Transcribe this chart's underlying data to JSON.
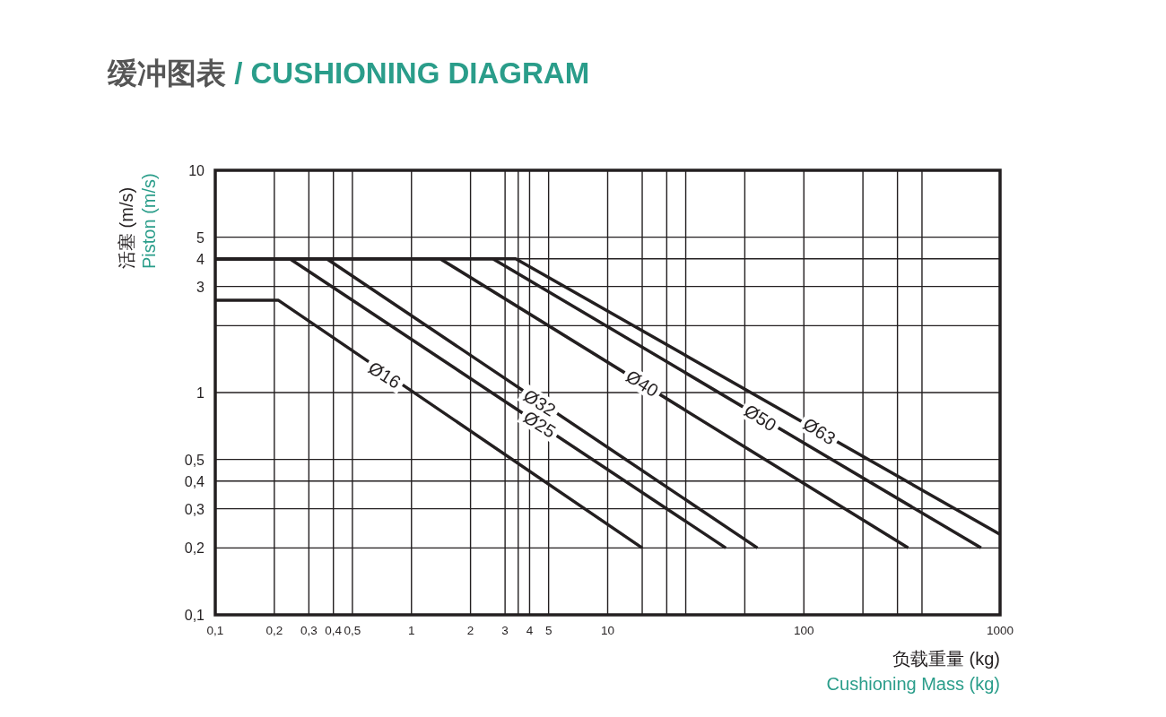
{
  "chart_data": {
    "type": "line",
    "title": "缓冲图表 / CUSHIONING DIAGRAM",
    "xlabel": "负载重量 (kg)\nCushioning Mass (kg)",
    "ylabel": "活塞 (m/s)\nPiston (m/s)",
    "log": "xy",
    "grid": true,
    "xlim": [
      0.1,
      1000
    ],
    "ylim": [
      0.1,
      10
    ],
    "xticks": [
      {
        "value": 0.1,
        "label": "0,1"
      },
      {
        "value": 0.2,
        "label": "0,2"
      },
      {
        "value": 0.3,
        "label": "0,3"
      },
      {
        "value": 0.4,
        "label": "0,4"
      },
      {
        "value": 0.5,
        "label": "0,5"
      },
      1,
      2,
      3,
      {
        "value": 3.5,
        "label": null
      },
      4,
      5,
      10,
      {
        "value": 15,
        "label": null
      },
      {
        "value": 20,
        "label": null
      },
      {
        "value": 25,
        "label": null
      },
      {
        "value": 50,
        "label": null
      },
      100,
      {
        "value": 200,
        "label": null
      },
      {
        "value": 300,
        "label": null
      },
      {
        "value": 400,
        "label": null
      },
      1000
    ],
    "yticks": [
      {
        "value": 0.1,
        "label": "0,1"
      },
      {
        "value": 0.2,
        "label": "0,2"
      },
      {
        "value": 0.3,
        "label": "0,3"
      },
      {
        "value": 0.4,
        "label": "0,4"
      },
      {
        "value": 0.5,
        "label": "0,5"
      },
      1,
      {
        "value": 2,
        "label": null
      },
      3,
      4,
      5,
      10
    ],
    "series": [
      {
        "color": "#231f20",
        "x": [
          0.1,
          0.21,
          15
        ],
        "values": [
          2.6,
          2.6,
          0.2
        ]
      },
      {
        "color": "#231f20",
        "x": [
          0.1,
          0.24,
          40
        ],
        "values": [
          4,
          4,
          0.2
        ]
      },
      {
        "color": "#231f20",
        "x": [
          0.1,
          0.37,
          58
        ],
        "values": [
          4,
          4,
          0.2
        ]
      },
      {
        "color": "#231f20",
        "x": [
          0.1,
          1.4,
          340
        ],
        "values": [
          4,
          4,
          0.2
        ]
      },
      {
        "color": "#231f20",
        "x": [
          0.1,
          2.6,
          800
        ],
        "values": [
          4,
          4,
          0.2
        ]
      },
      {
        "color": "#231f20",
        "x": [
          0.1,
          3.4,
          1000
        ],
        "values": [
          4,
          4,
          0.23
        ]
      }
    ],
    "annotations": [
      {
        "text": "Ø16",
        "x": 0.73,
        "y": 1.2
      },
      {
        "text": "Ø25",
        "x": 4.5,
        "y": 0.72
      },
      {
        "text": "Ø32",
        "x": 4.5,
        "y": 0.9
      },
      {
        "text": "Ø40",
        "x": 15,
        "y": 1.1
      },
      {
        "text": "Ø50",
        "x": 60,
        "y": 0.77
      },
      {
        "text": "Ø63",
        "x": 120,
        "y": 0.67
      }
    ]
  }
}
